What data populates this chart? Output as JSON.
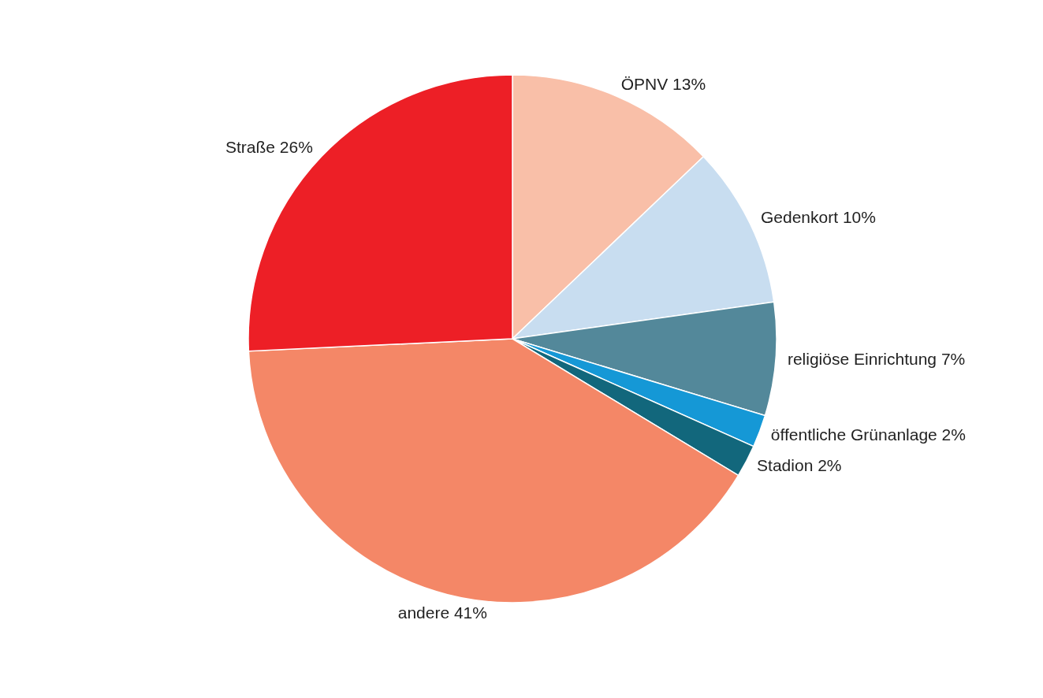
{
  "chart_data": {
    "type": "pie",
    "categories": [
      "ÖPNV",
      "Gedenkort",
      "religiöse Einrichtung",
      "öffentliche Grünanlage",
      "Stadion",
      "andere",
      "Straße"
    ],
    "values": [
      13,
      10,
      7,
      2,
      2,
      41,
      26
    ],
    "value_labels": [
      "13%",
      "10%",
      "7%",
      "2%",
      "2%",
      "41%",
      "26%"
    ],
    "colors": [
      "#f9bfa8",
      "#c8ddf0",
      "#53889a",
      "#1598d6",
      "#12677c",
      "#f48767",
      "#ed1f26"
    ]
  }
}
